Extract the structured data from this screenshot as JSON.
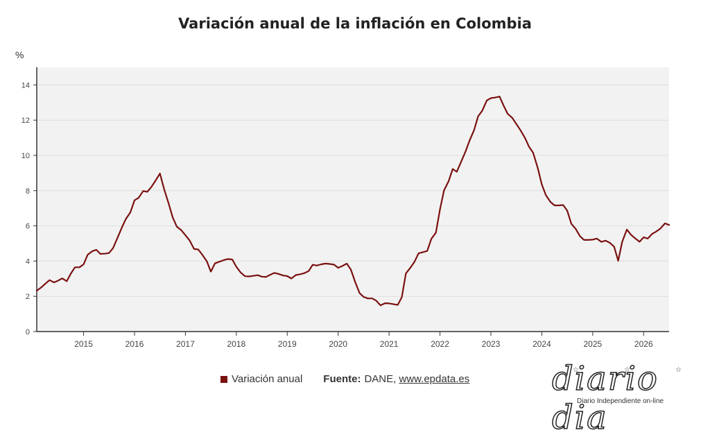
{
  "title": "Variación anual de la inflación en Colombia",
  "y_unit": "%",
  "legend": {
    "series_label": "Variación anual",
    "source_label": "Fuente:",
    "source_text": "DANE,",
    "source_link": "www.epdata.es"
  },
  "logo": {
    "text": "diario dia",
    "tagline": "Diario Independiente on-line"
  },
  "colors": {
    "line": "#7a1010",
    "plot_bg": "#f2f2f2",
    "grid": "#dddddd",
    "axis": "#333333"
  },
  "chart_data": {
    "type": "line",
    "title": "Variación anual de la inflación en Colombia",
    "ylabel": "%",
    "xlabel": "",
    "ylim": [
      0,
      15
    ],
    "yticks": [
      0,
      2,
      4,
      6,
      8,
      10,
      12,
      14
    ],
    "xlim": [
      2014.08,
      2026.5
    ],
    "xticks": [
      2015,
      2016,
      2017,
      2018,
      2019,
      2020,
      2021,
      2022,
      2023,
      2024,
      2025,
      2026
    ],
    "grid": true,
    "legend_position": "bottom",
    "series": [
      {
        "name": "Variación anual",
        "x": [
          2014.08,
          2014.17,
          2014.25,
          2014.33,
          2014.42,
          2014.5,
          2014.58,
          2014.67,
          2014.75,
          2014.83,
          2014.92,
          2015.0,
          2015.08,
          2015.17,
          2015.25,
          2015.33,
          2015.42,
          2015.5,
          2015.58,
          2015.67,
          2015.75,
          2015.83,
          2015.92,
          2016.0,
          2016.08,
          2016.17,
          2016.25,
          2016.33,
          2016.42,
          2016.5,
          2016.58,
          2016.67,
          2016.75,
          2016.83,
          2016.92,
          2017.0,
          2017.08,
          2017.17,
          2017.25,
          2017.33,
          2017.42,
          2017.5,
          2017.58,
          2017.67,
          2017.75,
          2017.83,
          2017.92,
          2018.0,
          2018.08,
          2018.17,
          2018.25,
          2018.33,
          2018.42,
          2018.5,
          2018.58,
          2018.67,
          2018.75,
          2018.83,
          2018.92,
          2019.0,
          2019.08,
          2019.17,
          2019.25,
          2019.33,
          2019.42,
          2019.5,
          2019.58,
          2019.67,
          2019.75,
          2019.83,
          2019.92,
          2020.0,
          2020.08,
          2020.17,
          2020.25,
          2020.33,
          2020.42,
          2020.5,
          2020.58,
          2020.67,
          2020.75,
          2020.83,
          2020.92,
          2021.0,
          2021.08,
          2021.17,
          2021.25,
          2021.33,
          2021.42,
          2021.5,
          2021.58,
          2021.67,
          2021.75,
          2021.83,
          2021.92,
          2022.0,
          2022.08,
          2022.17,
          2022.25,
          2022.33,
          2022.42,
          2022.5,
          2022.58,
          2022.67,
          2022.75,
          2022.83,
          2022.92,
          2023.0,
          2023.08,
          2023.17,
          2023.25,
          2023.33,
          2023.42,
          2023.5,
          2023.58,
          2023.67,
          2023.75,
          2023.83,
          2023.92,
          2024.0,
          2024.08,
          2024.17,
          2024.25,
          2024.33,
          2024.42,
          2024.5,
          2024.58,
          2024.67,
          2024.75,
          2024.83,
          2024.92,
          2025.0,
          2025.08,
          2025.17,
          2025.25,
          2025.33,
          2025.42,
          2025.5,
          2025.58,
          2025.67,
          2025.75,
          2025.83,
          2025.92,
          2026.0,
          2026.08,
          2026.17,
          2026.25,
          2026.33,
          2026.42,
          2026.5
        ],
        "values": [
          2.32,
          2.51,
          2.72,
          2.92,
          2.79,
          2.89,
          3.02,
          2.86,
          3.29,
          3.65,
          3.65,
          3.82,
          4.36,
          4.56,
          4.64,
          4.41,
          4.42,
          4.46,
          4.74,
          5.35,
          5.89,
          6.39,
          6.77,
          7.45,
          7.59,
          7.98,
          7.93,
          8.2,
          8.6,
          8.97,
          8.1,
          7.27,
          6.48,
          5.96,
          5.75,
          5.47,
          5.18,
          4.69,
          4.66,
          4.37,
          3.99,
          3.4,
          3.87,
          3.97,
          4.05,
          4.12,
          4.09,
          3.68,
          3.37,
          3.14,
          3.13,
          3.16,
          3.2,
          3.12,
          3.1,
          3.23,
          3.33,
          3.27,
          3.18,
          3.15,
          3.01,
          3.21,
          3.25,
          3.31,
          3.43,
          3.79,
          3.75,
          3.82,
          3.86,
          3.84,
          3.8,
          3.62,
          3.72,
          3.86,
          3.51,
          2.85,
          2.19,
          1.97,
          1.88,
          1.88,
          1.75,
          1.49,
          1.61,
          1.6,
          1.56,
          1.51,
          1.95,
          3.3,
          3.63,
          3.97,
          4.44,
          4.51,
          4.58,
          5.26,
          5.62,
          6.94,
          8.01,
          8.53,
          9.23,
          9.07,
          9.67,
          10.21,
          10.84,
          11.44,
          12.22,
          12.53,
          13.12,
          13.25,
          13.28,
          13.34,
          12.82,
          12.36,
          12.13,
          11.78,
          11.43,
          10.99,
          10.48,
          10.15,
          9.28,
          8.35,
          7.74,
          7.36,
          7.16,
          7.16,
          7.18,
          6.86,
          6.12,
          5.81,
          5.41,
          5.2,
          5.2,
          5.22,
          5.28,
          5.09,
          5.16,
          5.05,
          4.82,
          4.02,
          5.1,
          5.79,
          5.5,
          5.3,
          5.1,
          5.35,
          5.28,
          5.55,
          5.68,
          5.85,
          6.14,
          6.05
        ]
      }
    ]
  }
}
